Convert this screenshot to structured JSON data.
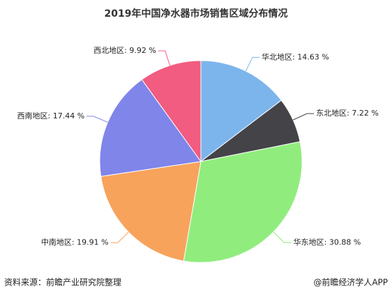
{
  "chart_data": {
    "type": "pie",
    "title": "2019年中国净水器市场销售区域分布情况",
    "values": [
      14.63,
      7.22,
      30.88,
      19.91,
      17.44,
      9.92
    ],
    "value_labels": [
      "华北地区: 14.63 %",
      "东北地区: 7.22 %",
      "华东地区: 30.88 %",
      "中南地区: 19.91 %",
      "西南地区: 17.44 %",
      "西北地区: 9.92 %"
    ],
    "colors": [
      "#7cb5ec",
      "#434348",
      "#90ed7d",
      "#f7a35c",
      "#8085e9",
      "#f15c80"
    ],
    "source": "资料来源：前瞻产业研究院整理",
    "credit": "@前瞻经济学人APP"
  }
}
